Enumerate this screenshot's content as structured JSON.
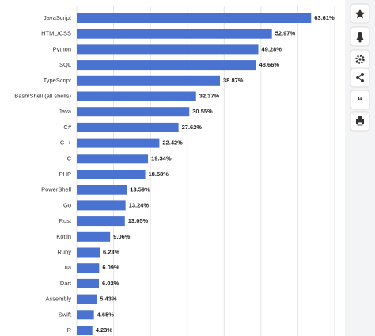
{
  "chart_data": {
    "type": "hbar",
    "categories": [
      "JavaScript",
      "HTML/CSS",
      "Python",
      "SQL",
      "TypeScript",
      "Bash/Shell (all shells)",
      "Java",
      "C#",
      "C++",
      "C",
      "PHP",
      "PowerShell",
      "Go",
      "Rust",
      "Kotlin",
      "Ruby",
      "Lua",
      "Dart",
      "Assembly",
      "Swift",
      "R"
    ],
    "values": [
      63.61,
      52.97,
      49.28,
      48.66,
      38.87,
      32.37,
      30.55,
      27.62,
      22.42,
      19.34,
      18.58,
      13.59,
      13.24,
      13.05,
      9.06,
      6.23,
      6.09,
      6.02,
      5.43,
      4.65,
      4.23
    ],
    "value_labels": [
      "63.61%",
      "52.97%",
      "49.28%",
      "48.66%",
      "38.87%",
      "32.37%",
      "30.55%",
      "27.62%",
      "22.42%",
      "19.34%",
      "18.58%",
      "13.59%",
      "13.24%",
      "13.05%",
      "9.06%",
      "6.23%",
      "6.09%",
      "6.02%",
      "5.43%",
      "4.65%",
      "4.23%"
    ],
    "color": "#4a72d0",
    "xlim": [
      0,
      70
    ],
    "xticks": [
      0,
      10,
      20,
      30,
      40,
      50,
      60,
      70
    ],
    "grid": true
  }
}
